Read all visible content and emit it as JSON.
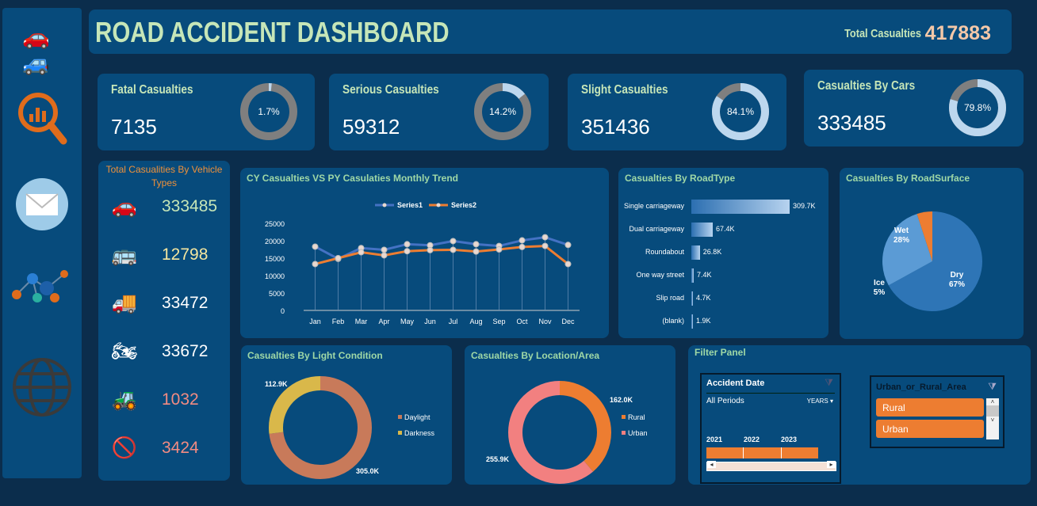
{
  "header": {
    "title": "ROAD ACCIDENT DASHBOARD",
    "total_label": "Total Casualties",
    "total_value": "417883"
  },
  "sidebar": {
    "icons": [
      "cars-icon",
      "analytics-search-icon",
      "mail-icon",
      "network-icon",
      "globe-icon"
    ]
  },
  "kpis": [
    {
      "label": "Fatal Casualties",
      "value": "7135",
      "pct": "1.7%",
      "fraction": 0.017
    },
    {
      "label": "Serious Casualties",
      "value": "59312",
      "pct": "14.2%",
      "fraction": 0.142
    },
    {
      "label": "Slight Casualties",
      "value": "351436",
      "pct": "84.1%",
      "fraction": 0.841
    },
    {
      "label": "Casualties By Cars",
      "value": "333485",
      "pct": "79.8%",
      "fraction": 0.798
    }
  ],
  "vehicles": {
    "title": "Total Casualities By Vehicle Types",
    "items": [
      {
        "icon": "car-icon",
        "value": "333485",
        "color": "#c6e6b8"
      },
      {
        "icon": "bus-icon",
        "value": "12798",
        "color": "#f4e6a0"
      },
      {
        "icon": "truck-icon",
        "value": "33472",
        "color": "#ffffff"
      },
      {
        "icon": "motorcycle-icon",
        "value": "33672",
        "color": "#ffffff"
      },
      {
        "icon": "tractor-icon",
        "value": "1032",
        "color": "#f28b82"
      },
      {
        "icon": "prohibited-icon",
        "value": "3424",
        "color": "#f28b82"
      }
    ]
  },
  "chart_data": [
    {
      "type": "line",
      "title": "CY Casualties VS PY Casulaties Monthly Trend",
      "categories": [
        "Jan",
        "Feb",
        "Mar",
        "Apr",
        "May",
        "Jun",
        "Jul",
        "Aug",
        "Sep",
        "Oct",
        "Nov",
        "Dec"
      ],
      "series": [
        {
          "name": "Series1",
          "color": "#4472c4",
          "values": [
            18300,
            14800,
            17900,
            17400,
            19000,
            18700,
            19900,
            19000,
            18500,
            20100,
            21000,
            18800
          ]
        },
        {
          "name": "Series2",
          "color": "#ed7d31",
          "values": [
            13300,
            15000,
            16700,
            15800,
            17000,
            17300,
            17400,
            16900,
            17500,
            18200,
            18500,
            13300
          ]
        }
      ],
      "yticks": [
        "0",
        "5000",
        "10000",
        "15000",
        "20000",
        "25000"
      ],
      "ylim": [
        0,
        25000
      ],
      "legend": "top"
    },
    {
      "type": "bar",
      "orientation": "horizontal",
      "title": "Casualties By RoadType",
      "categories": [
        "Single carriageway",
        "Dual carriageway",
        "Roundabout",
        "One way street",
        "Slip road",
        "(blank)"
      ],
      "values": [
        309.7,
        67.4,
        26.8,
        7.4,
        4.7,
        1.9
      ],
      "labels": [
        "309.7K",
        "67.4K",
        "26.8K",
        "7.4K",
        "4.7K",
        "1.9K"
      ]
    },
    {
      "type": "pie",
      "title": "Casualties By RoadSurface",
      "categories": [
        "Dry",
        "Wet",
        "Ice"
      ],
      "values": [
        67,
        28,
        5
      ],
      "labels": [
        "67%",
        "28%",
        "5%"
      ],
      "colors": [
        "#2e75b6",
        "#5b9bd5",
        "#ed7d31"
      ]
    },
    {
      "type": "pie",
      "donut": true,
      "title": "Casualties By Light Condition",
      "categories": [
        "Daylight",
        "Darkness"
      ],
      "values": [
        305.0,
        112.9
      ],
      "labels": [
        "305.0K",
        "112.9K"
      ],
      "colors": [
        "#c87a5a",
        "#d9b84a"
      ],
      "legend": "right"
    },
    {
      "type": "pie",
      "donut": true,
      "title": "Casualties By Location/Area",
      "categories": [
        "Rural",
        "Urban"
      ],
      "values": [
        162.0,
        255.9
      ],
      "labels": [
        "162.0K",
        "255.9K"
      ],
      "colors": [
        "#ed7d31",
        "#f28080"
      ],
      "legend": "right"
    }
  ],
  "filter": {
    "title": "Filter Panel",
    "date": {
      "title": "Accident Date",
      "period": "All Periods",
      "unit": "YEARS",
      "years": [
        "2021",
        "2022",
        "2023"
      ]
    },
    "area": {
      "title": "Urban_or_Rural_Area",
      "options": [
        "Rural",
        "Urban"
      ]
    }
  }
}
